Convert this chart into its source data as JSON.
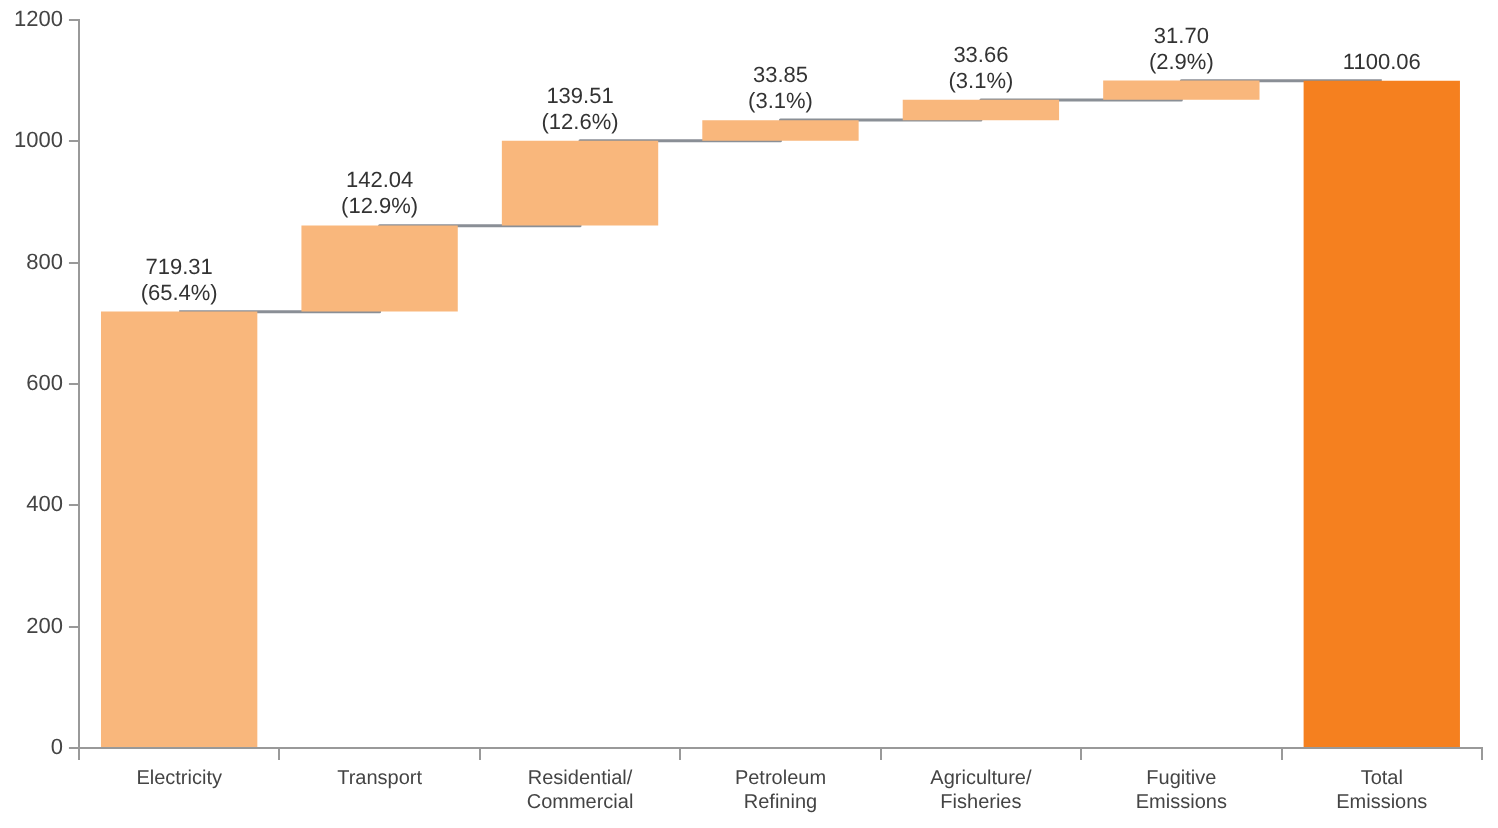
{
  "chart_data": {
    "type": "bar",
    "categories": [
      "Electricity",
      "Transport",
      "Residential/\nCommercial",
      "Petroleum\nRefining",
      "Agriculture/\nFisheries",
      "Fugitive\nEmissions",
      "Total\nEmissions"
    ],
    "series": [
      {
        "values": [
          719.31,
          142.04,
          139.51,
          33.85,
          33.66,
          31.7,
          1100.06
        ],
        "base": [
          0,
          719.31,
          861.35,
          1000.86,
          1034.71,
          1068.37,
          0
        ],
        "colors": [
          "#f9b77c",
          "#f9b77c",
          "#f9b77c",
          "#f9b77c",
          "#f9b77c",
          "#f9b77c",
          "#f5801f"
        ],
        "value_labels": [
          "719.31\n(65.4%)",
          "142.04\n(12.9%)",
          "139.51\n(12.6%)",
          "33.85\n(3.1%)",
          "33.66\n(3.1%)",
          "31.70\n(2.9%)",
          "1100.06"
        ]
      },
      {
        "type": "step",
        "color": "#8a8f96",
        "values": [
          719,
          861,
          1001,
          1035,
          1068,
          1100,
          1100
        ]
      }
    ],
    "ylim": [
      0,
      1200
    ],
    "yticks": [
      0,
      200,
      400,
      600,
      800,
      1000,
      1200
    ],
    "grid": false,
    "legend": false
  }
}
